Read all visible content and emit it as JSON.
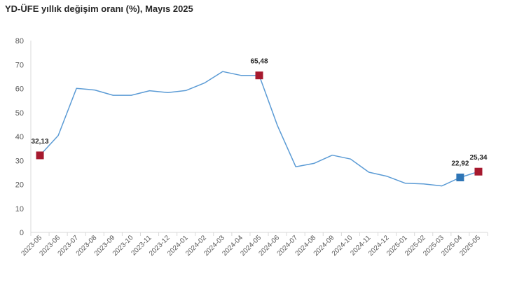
{
  "chart_data": {
    "type": "line",
    "title": "YD-ÜFE yıllık değişim oranı (%), Mayıs 2025",
    "xlabel": "",
    "ylabel": "",
    "ylim": [
      0,
      80
    ],
    "yticks": [
      0,
      10,
      20,
      30,
      40,
      50,
      60,
      70,
      80
    ],
    "grid": false,
    "categories": [
      "2023-05",
      "2023-06",
      "2023-07",
      "2023-08",
      "2023-09",
      "2023-10",
      "2023-11",
      "2023-12",
      "2024-01",
      "2024-02",
      "2024-03",
      "2024-04",
      "2024-05",
      "2024-06",
      "2024-07",
      "2024-08",
      "2024-09",
      "2024-10",
      "2024-11",
      "2024-12",
      "2025-01",
      "2025-02",
      "2025-03",
      "2025-04",
      "2025-05"
    ],
    "series": [
      {
        "name": "YD-ÜFE",
        "color": "#5B9BD5",
        "values": [
          32.13,
          40.4,
          60.1,
          59.4,
          57.2,
          57.2,
          59.1,
          58.3,
          59.2,
          62.3,
          67.1,
          65.5,
          65.48,
          44.5,
          27.4,
          28.8,
          32.2,
          30.6,
          25.1,
          23.4,
          20.5,
          20.2,
          19.4,
          22.92,
          25.34
        ]
      }
    ],
    "annotations": [
      {
        "index": 0,
        "label": "32,13",
        "marker_color": "#A6192E"
      },
      {
        "index": 12,
        "label": "65,48",
        "marker_color": "#A6192E"
      },
      {
        "index": 23,
        "label": "22,92",
        "marker_color": "#2E75B6"
      },
      {
        "index": 24,
        "label": "25,34",
        "marker_color": "#A6192E"
      }
    ]
  }
}
